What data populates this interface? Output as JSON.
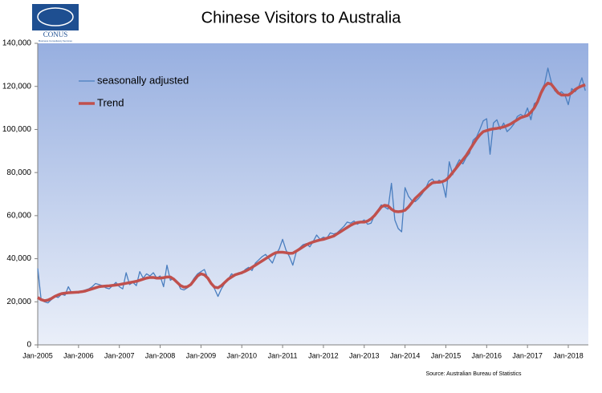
{
  "logo": {
    "name": "CONUS",
    "tagline": "Business Consultancy Services"
  },
  "chart_data": {
    "type": "line",
    "title": "Chinese Visitors to Australia",
    "source": "Source: Australian Bureau of Statistics",
    "categories": [
      "Jan-2005",
      null,
      null,
      null,
      null,
      null,
      null,
      null,
      null,
      null,
      null,
      null,
      "Jan-2006",
      null,
      null,
      null,
      null,
      null,
      null,
      null,
      null,
      null,
      null,
      null,
      "Jan-2007",
      null,
      null,
      null,
      null,
      null,
      null,
      null,
      null,
      null,
      null,
      null,
      "Jan-2008",
      null,
      null,
      null,
      null,
      null,
      null,
      null,
      null,
      null,
      null,
      null,
      "Jan-2009",
      null,
      null,
      null,
      null,
      null,
      null,
      null,
      null,
      null,
      null,
      null,
      "Jan-2010",
      null,
      null,
      null,
      null,
      null,
      null,
      null,
      null,
      null,
      null,
      null,
      "Jan-2011",
      null,
      null,
      null,
      null,
      null,
      null,
      null,
      null,
      null,
      null,
      null,
      "Jan-2012",
      null,
      null,
      null,
      null,
      null,
      null,
      null,
      null,
      null,
      null,
      null,
      "Jan-2013",
      null,
      null,
      null,
      null,
      null,
      null,
      null,
      null,
      null,
      null,
      null,
      "Jan-2014",
      null,
      null,
      null,
      null,
      null,
      null,
      null,
      null,
      null,
      null,
      null,
      "Jan-2015",
      null,
      null,
      null,
      null,
      null,
      null,
      null,
      null,
      null,
      null,
      null,
      "Jan-2016",
      null,
      null,
      null,
      null,
      null,
      null,
      null,
      null,
      null,
      null,
      null,
      "Jan-2017",
      null,
      null,
      null,
      null,
      null,
      null,
      null,
      null,
      null,
      null,
      null,
      "Jan-2018",
      null,
      null,
      null,
      null,
      null
    ],
    "series": [
      {
        "name": "seasonally adjusted",
        "color": "#4a7ebf",
        "width": 1.3,
        "values": [
          35500,
          21000,
          20000,
          19500,
          21000,
          22500,
          22000,
          23500,
          23000,
          27000,
          24000,
          24500,
          24000,
          25000,
          25500,
          26000,
          27000,
          28500,
          28000,
          27500,
          26500,
          26000,
          27500,
          29000,
          27000,
          26000,
          33500,
          28000,
          29000,
          27500,
          34000,
          31000,
          33000,
          32000,
          33500,
          31000,
          32000,
          27000,
          37000,
          30000,
          31000,
          29500,
          26000,
          25500,
          26500,
          28500,
          31000,
          33000,
          34000,
          35000,
          31000,
          29000,
          26000,
          22500,
          26000,
          28500,
          30500,
          33000,
          32000,
          33500,
          33000,
          35000,
          36000,
          34500,
          38000,
          39500,
          41000,
          42000,
          40000,
          38000,
          42000,
          44500,
          49000,
          44000,
          41000,
          37000,
          43000,
          45000,
          46500,
          47000,
          45500,
          48000,
          51000,
          49000,
          50000,
          49500,
          52000,
          51500,
          52000,
          53500,
          55000,
          57000,
          56500,
          57500,
          56000,
          57000,
          58000,
          56000,
          56500,
          60000,
          62500,
          65000,
          64000,
          63000,
          75000,
          58000,
          54000,
          52500,
          73000,
          69000,
          67000,
          66500,
          68000,
          70000,
          72500,
          76000,
          77000,
          75000,
          76500,
          75500,
          68500,
          85000,
          79000,
          83000,
          86000,
          84000,
          87000,
          89000,
          95000,
          96500,
          100000,
          104000,
          105000,
          88500,
          103000,
          104500,
          100000,
          103000,
          99000,
          100500,
          102500,
          106000,
          107000,
          106000,
          110000,
          104500,
          112000,
          113000,
          118000,
          121000,
          128500,
          122000,
          118000,
          116500,
          117500,
          116000,
          111500,
          119000,
          117500,
          119500,
          124000,
          118000
        ]
      },
      {
        "name": "Trend",
        "color": "#c0504d",
        "width": 3.5,
        "values": [
          22000,
          21000,
          20500,
          20800,
          21500,
          22500,
          23200,
          23800,
          24000,
          24200,
          24300,
          24400,
          24500,
          24700,
          25000,
          25500,
          26000,
          26500,
          27000,
          27200,
          27300,
          27400,
          27600,
          27800,
          28000,
          28300,
          28600,
          28900,
          29200,
          29500,
          30000,
          30500,
          31000,
          31300,
          31300,
          31000,
          31000,
          31200,
          31500,
          31500,
          30500,
          29000,
          27500,
          26800,
          27000,
          28000,
          30000,
          32000,
          33000,
          32500,
          31000,
          28500,
          26800,
          26500,
          27500,
          29000,
          30500,
          31500,
          32500,
          33000,
          33500,
          34200,
          35000,
          36000,
          37000,
          38000,
          39000,
          40000,
          41000,
          42000,
          42800,
          43000,
          43000,
          42800,
          42500,
          42600,
          43500,
          44500,
          45500,
          46500,
          47200,
          47800,
          48300,
          48700,
          49000,
          49500,
          50000,
          50500,
          51500,
          52500,
          53500,
          54500,
          55500,
          56300,
          56800,
          57000,
          57000,
          57500,
          58500,
          60000,
          62000,
          64000,
          64800,
          64500,
          63000,
          62000,
          61800,
          62000,
          62500,
          64000,
          66000,
          68000,
          69500,
          71000,
          72500,
          74000,
          75200,
          75500,
          75500,
          75800,
          76500,
          78000,
          80000,
          82000,
          84000,
          86000,
          88000,
          90500,
          93000,
          95500,
          97500,
          99000,
          99500,
          100000,
          100300,
          100500,
          100800,
          101200,
          101800,
          102500,
          103500,
          104500,
          105500,
          106000,
          106500,
          108000,
          110000,
          113000,
          117000,
          120000,
          121500,
          121000,
          119000,
          117000,
          116000,
          116000,
          116000,
          117000,
          118500,
          119500,
          120200,
          120700
        ]
      }
    ],
    "ylim": [
      0,
      140000
    ],
    "yticks": [
      0,
      {
        "value": 20000,
        "label": "20,000"
      },
      {
        "value": 40000,
        "label": "40,000"
      },
      {
        "value": 60000,
        "label": "60,000"
      },
      {
        "value": 80000,
        "label": "80,000"
      },
      {
        "value": 100000,
        "label": "100,000"
      },
      {
        "value": 120000,
        "label": "120,000"
      },
      {
        "value": 140000,
        "label": "140,000"
      }
    ],
    "grid": false,
    "legend": "top-left"
  }
}
